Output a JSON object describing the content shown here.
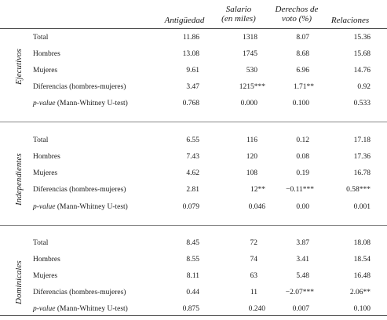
{
  "headers": {
    "antiguedad": "Antigüedad",
    "salario_line1": "Salario",
    "salario_line2": "(en miles)",
    "derechos_line1": "Derechos de",
    "derechos_line2": "voto (%)",
    "relaciones": "Relaciones"
  },
  "row_labels": {
    "total": "Total",
    "hombres": "Hombres",
    "mujeres": "Mujeres",
    "diferencias": "Diferencias (hombres-mujeres)",
    "pvalue_italic": "p-value",
    "pvalue_rest": " (Mann-Whitney U-test)"
  },
  "sections": [
    {
      "name": "Ejecutivos",
      "rows": [
        [
          "11.86",
          "1318",
          "8.07",
          "15.36"
        ],
        [
          "13.08",
          "1745",
          "8.68",
          "15.68"
        ],
        [
          "9.61",
          "530",
          "6.96",
          "14.76"
        ],
        [
          "3.47",
          "1215***",
          "1.71**",
          "0.92"
        ],
        [
          "0.768",
          "0.000",
          "0.100",
          "0.533"
        ]
      ]
    },
    {
      "name": "Independientes",
      "rows": [
        [
          "6.55",
          "116",
          "0.12",
          "17.18"
        ],
        [
          "7.43",
          "120",
          "0.08",
          "17.36"
        ],
        [
          "4.62",
          "108",
          "0.19",
          "16.78"
        ],
        [
          "2.81",
          "12**",
          "−0.11***",
          "0.58***"
        ],
        [
          "0.079",
          "0.046",
          "0.00",
          "0.001"
        ]
      ]
    },
    {
      "name": "Dominicales",
      "rows": [
        [
          "8.45",
          "72",
          "3.87",
          "18.08"
        ],
        [
          "8.55",
          "74",
          "3.41",
          "18.54"
        ],
        [
          "8.11",
          "63",
          "5.48",
          "16.48"
        ],
        [
          "0.44",
          "11",
          "−2.07***",
          "2.06**"
        ],
        [
          "0.875",
          "0.240",
          "0.007",
          "0.100"
        ]
      ]
    }
  ]
}
